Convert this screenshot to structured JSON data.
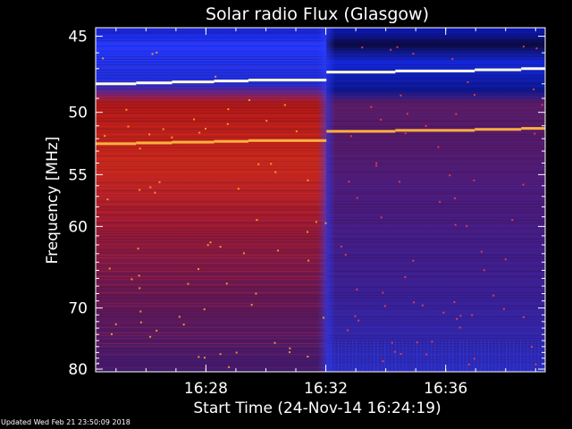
{
  "chart_data": {
    "type": "heatmap",
    "title": "Solar radio Flux (Glasgow)",
    "xlabel": "Start Time (24-Nov-14 16:24:19)",
    "ylabel": "Frequency [MHz]",
    "x_range_minutes": [
      0,
      15.0
    ],
    "start_time": "16:24:19",
    "x_ticks": [
      {
        "label": "16:28",
        "minute": 3.68
      },
      {
        "label": "16:32",
        "minute": 7.68
      },
      {
        "label": "16:36",
        "minute": 11.68
      }
    ],
    "y_range_mhz": [
      44.5,
      80.5
    ],
    "y_scale": "reciprocal",
    "y_ticks": [
      45,
      50,
      55,
      60,
      70,
      80
    ],
    "colormap": [
      "#06061c",
      "#0a14c8",
      "#2a3cff",
      "#b01020",
      "#ff2a10",
      "#ffb020",
      "#ffffff"
    ],
    "event_time_minute": 7.7,
    "bright_lines": [
      {
        "mhz_before": 48.0,
        "mhz_after": 47.3,
        "color": "#ffffe0"
      },
      {
        "mhz_before": 52.4,
        "mhz_after": 51.5,
        "color": "#ffb040"
      }
    ],
    "intensity_note": ""
  },
  "footer": {
    "updated": "Updated Wed Feb 21 23:50:09 2018"
  }
}
